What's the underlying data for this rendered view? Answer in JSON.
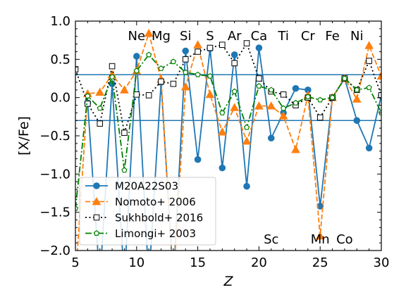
{
  "chart_data": {
    "type": "line",
    "xlabel": "Z",
    "ylabel": "[X/Fe]",
    "xlim": [
      5,
      30
    ],
    "ylim": [
      -2.0,
      1.0
    ],
    "xticks": [
      5,
      10,
      15,
      20,
      25,
      30
    ],
    "yticks": [
      -2.0,
      -1.5,
      -1.0,
      -0.5,
      0.0,
      0.5,
      1.0
    ],
    "xtick_labels": [
      "5",
      "10",
      "15",
      "20",
      "25",
      "30"
    ],
    "ytick_labels": [
      "−2.0",
      "−1.5",
      "−1.0",
      "−0.5",
      "0.0",
      "0.5",
      "1.0"
    ],
    "hlines": [
      0.3,
      -0.3
    ],
    "hline_color": "#1f77b4",
    "legend_position": "lower-left",
    "element_labels_top": [
      {
        "label": "Ne",
        "z": 10
      },
      {
        "label": "Mg",
        "z": 12
      },
      {
        "label": "Si",
        "z": 14
      },
      {
        "label": "S",
        "z": 16
      },
      {
        "label": "Ar",
        "z": 18
      },
      {
        "label": "Ca",
        "z": 20
      },
      {
        "label": "Ti",
        "z": 22
      },
      {
        "label": "Cr",
        "z": 24
      },
      {
        "label": "Fe",
        "z": 26
      },
      {
        "label": "Ni",
        "z": 28
      }
    ],
    "element_labels_bottom": [
      {
        "label": "Sc",
        "z": 21
      },
      {
        "label": "Mn",
        "z": 25
      },
      {
        "label": "Co",
        "z": 27
      }
    ],
    "series": [
      {
        "name": "M20A22S03",
        "color": "#1f77b4",
        "style": "solid",
        "marker": "circle",
        "x": [
          6,
          7,
          8,
          9,
          10,
          11,
          12,
          13,
          14,
          15,
          16,
          17,
          18,
          19,
          20,
          21,
          22,
          23,
          24,
          25,
          26,
          27,
          28,
          29,
          30
        ],
        "y": [
          -0.07,
          -2.4,
          0.18,
          -2.4,
          0.54,
          -2.4,
          0.2,
          -2.4,
          0.61,
          -0.81,
          0.64,
          -0.92,
          0.56,
          -1.16,
          0.65,
          -0.53,
          -0.2,
          0.12,
          0.1,
          -1.42,
          0.0,
          0.25,
          -0.3,
          -0.66,
          0.03
        ]
      },
      {
        "name": "Nomoto+ 2006",
        "color": "#ff7f0e",
        "style": "dashed",
        "marker": "triangle",
        "x": [
          5,
          6,
          7,
          8,
          9,
          10,
          11,
          12,
          13,
          14,
          15,
          16,
          17,
          18,
          19,
          20,
          21,
          22,
          23,
          24,
          25,
          26,
          27,
          28,
          29,
          30
        ],
        "y": [
          -2.4,
          0.05,
          0.07,
          0.3,
          0.1,
          0.35,
          0.84,
          0.24,
          -2.4,
          0.14,
          0.69,
          0.04,
          -0.45,
          -0.13,
          -0.57,
          -0.11,
          -0.11,
          -0.24,
          -0.68,
          0.03,
          -1.81,
          0.0,
          0.25,
          -0.02,
          0.68,
          0.28
        ]
      },
      {
        "name": "Sukhbold+ 2016",
        "color": "#000000",
        "style": "dotted",
        "marker": "square",
        "x": [
          5,
          6,
          7,
          8,
          9,
          10,
          11,
          12,
          13,
          14,
          15,
          16,
          17,
          18,
          19,
          20,
          21,
          22,
          23,
          24,
          25,
          26,
          27,
          28,
          29,
          30
        ],
        "y": [
          0.37,
          -0.08,
          -0.34,
          0.41,
          -0.46,
          0.04,
          0.03,
          0.21,
          0.18,
          0.5,
          0.6,
          0.65,
          0.69,
          0.45,
          0.71,
          0.25,
          0.08,
          0.04,
          -0.1,
          0.0,
          -0.26,
          0.0,
          0.25,
          0.1,
          0.48,
          0.03
        ]
      },
      {
        "name": "Limongi+ 2003",
        "color": "#008000",
        "style": "dashdot",
        "marker": "pentagon",
        "x": [
          5,
          6,
          7,
          8,
          9,
          10,
          11,
          12,
          13,
          14,
          15,
          16,
          17,
          18,
          19,
          20,
          21,
          22,
          23,
          24,
          25,
          26,
          27,
          28,
          29,
          30
        ],
        "y": [
          -1.45,
          0.02,
          -0.14,
          0.27,
          -0.95,
          0.35,
          0.56,
          0.38,
          0.47,
          0.33,
          0.3,
          0.28,
          -0.2,
          0.08,
          -0.39,
          0.15,
          0.1,
          -0.14,
          -0.07,
          0.01,
          -0.03,
          0.0,
          0.25,
          0.1,
          0.13,
          -0.2
        ]
      }
    ]
  }
}
